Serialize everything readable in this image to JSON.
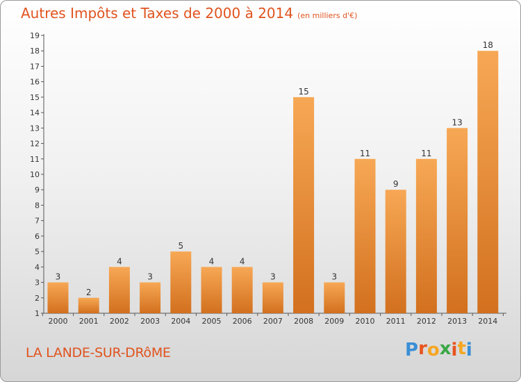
{
  "header": {
    "title": "Autres Impôts et Taxes de 2000 à 2014",
    "subtitle": "(en milliers d'€)"
  },
  "footer": {
    "commune": "LA LANDE-SUR-DRôME",
    "logo_letters": [
      "P",
      "r",
      "o",
      "x",
      "i",
      "t",
      "i"
    ]
  },
  "colors": {
    "title": "#e0531e",
    "bar_light": "#f7a855",
    "bar_dark": "#d2701e",
    "logo": [
      "#3a8fd6",
      "#e8541e",
      "#f5a623",
      "#3aa845",
      "#e8541e",
      "#f5a623",
      "#3a8fd6"
    ]
  },
  "chart_data": {
    "type": "bar",
    "categories": [
      "2000",
      "2001",
      "2002",
      "2003",
      "2004",
      "2005",
      "2006",
      "2007",
      "2008",
      "2009",
      "2010",
      "2011",
      "2012",
      "2013",
      "2014"
    ],
    "values": [
      3,
      2,
      4,
      3,
      5,
      4,
      4,
      3,
      15,
      3,
      11,
      9,
      11,
      13,
      18
    ],
    "data_labels": [
      "3",
      "2",
      "4",
      "3",
      "5",
      "4",
      "4",
      "3",
      "15",
      "3",
      "11",
      "9",
      "11",
      "13",
      "18"
    ],
    "ylim": [
      1,
      19
    ],
    "yticks": [
      "1",
      "2",
      "3",
      "4",
      "5",
      "6",
      "7",
      "8",
      "9",
      "10",
      "11",
      "12",
      "13",
      "14",
      "15",
      "16",
      "17",
      "18",
      "19"
    ],
    "grid": false
  }
}
